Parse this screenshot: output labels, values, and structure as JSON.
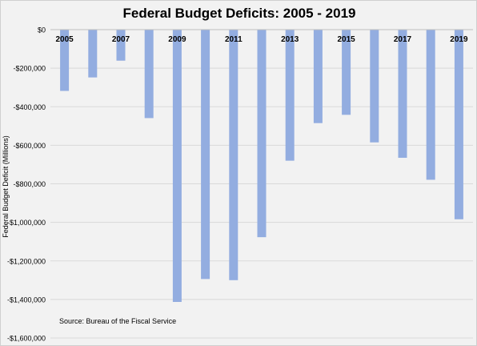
{
  "chart_data": {
    "type": "bar",
    "title": "Federal Budget Deficits:  2005 - 2019",
    "xlabel": "",
    "ylabel": "Federal Budget Deficit (Millions)",
    "source": "Source: Bureau of the Fiscal Service",
    "categories": [
      "2005",
      "2006",
      "2007",
      "2008",
      "2009",
      "2010",
      "2011",
      "2012",
      "2013",
      "2014",
      "2015",
      "2016",
      "2017",
      "2018",
      "2019"
    ],
    "x_tick_labels": [
      "2005",
      "",
      "2007",
      "",
      "2009",
      "",
      "2011",
      "",
      "2013",
      "",
      "2015",
      "",
      "2017",
      "",
      "2019"
    ],
    "values": [
      -318000,
      -248000,
      -161000,
      -459000,
      -1413000,
      -1294000,
      -1300000,
      -1077000,
      -680000,
      -485000,
      -442000,
      -585000,
      -665000,
      -779000,
      -984000
    ],
    "ylim": [
      -1600000,
      0
    ],
    "y_ticks": [
      0,
      -200000,
      -400000,
      -600000,
      -800000,
      -1000000,
      -1200000,
      -1400000,
      -1600000
    ],
    "y_tick_labels": [
      "$0",
      "-$200,000",
      "-$400,000",
      "-$600,000",
      "-$800,000",
      "-$1,000,000",
      "-$1,200,000",
      "-$1,400,000",
      "-$1,600,000"
    ],
    "bar_color": "#93ade0",
    "grid_color": "#d9d9d9",
    "grid": true,
    "legend": "none"
  }
}
